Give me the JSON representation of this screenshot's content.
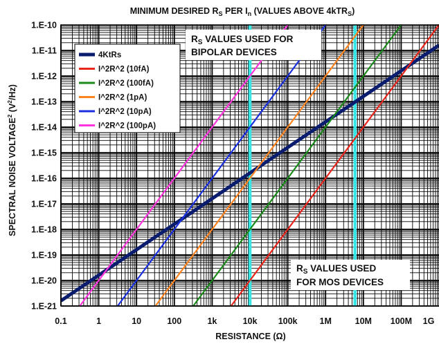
{
  "chart_data": {
    "type": "line",
    "title": {
      "prefix": "MINIMUM DESIRED R",
      "sub1": "S",
      "mid": " PER I",
      "sub2": "n",
      "mid2": " (VALUES ABOVE  4kTR",
      "sub3": "S",
      "suffix": ")"
    },
    "xlabel": "RESISTANCE  (Ω)",
    "ylabel": {
      "pre": "SPECTRAL NOISE VOLTAGE",
      "sup": "2",
      "post": " (V",
      "sup2": "2",
      "post2": "/Hz)"
    },
    "x_scale": "log",
    "y_scale": "log",
    "xlim": [
      0.1,
      1000000000
    ],
    "ylim": [
      1e-21,
      1e-10
    ],
    "x_tick_labels": [
      "0.1",
      "1",
      "10",
      "100",
      "1k",
      "10k",
      "100k",
      "1M",
      "10M",
      "100M",
      "1G"
    ],
    "y_tick_labels": [
      "1.E-10",
      "1.E-11",
      "1.E-12",
      "1.E-13",
      "1.E-14",
      "1.E-15",
      "1.E-16",
      "1.E-17",
      "1.E-18",
      "1.E-19",
      "1.E-20",
      "1.E-21"
    ],
    "grid": true,
    "legend_position": "top-left",
    "series": [
      {
        "name": "4KtRs",
        "formula": "4kTR",
        "color": "#0a1c6e",
        "x": [
          0.1,
          1000000000
        ],
        "y": [
          1.6e-21,
          1.6e-11
        ]
      },
      {
        "name": "I^2R^2 (10fA)",
        "formula": "I2R2",
        "current": 1e-14,
        "color": "#e8241b",
        "x": [
          3162,
          1000000000
        ],
        "y": [
          1e-21,
          1e-10
        ]
      },
      {
        "name": "I^2R^2 (100fA)",
        "formula": "I2R2",
        "current": 1e-13,
        "color": "#1a8a1a",
        "x": [
          316.2,
          100000000
        ],
        "y": [
          1e-21,
          1e-10
        ]
      },
      {
        "name": "I^2R^2 (1pA)",
        "formula": "I2R2",
        "current": 1e-12,
        "color": "#ff8420",
        "x": [
          31.62,
          10000000
        ],
        "y": [
          1e-21,
          1e-10
        ]
      },
      {
        "name": "I^2R^2 (10pA)",
        "formula": "I2R2",
        "current": 1e-11,
        "color": "#1a2fe0",
        "x": [
          3.162,
          1000000
        ],
        "y": [
          1e-21,
          1e-10
        ]
      },
      {
        "name": "I^2R^2 (100pA)",
        "formula": "I2R2",
        "current": 1e-10,
        "color": "#ff33dd",
        "x": [
          0.3162,
          100000
        ],
        "y": [
          1e-21,
          1e-10
        ]
      }
    ],
    "vertical_markers": [
      {
        "x": 10000,
        "color": "#38e6e6"
      },
      {
        "x": 6000000,
        "color": "#38e6e6"
      }
    ],
    "annotations": [
      {
        "line1_main": "R",
        "line1_sub": "S",
        "line1_rest": " VALUES USED FOR",
        "line2": "BIPOLAR DEVICES",
        "position": "top-center"
      },
      {
        "line1_main": "R",
        "line1_sub": "S",
        "line1_rest": " VALUES USED",
        "line2": "FOR MOS DEVICES",
        "position": "bottom-right"
      }
    ]
  }
}
